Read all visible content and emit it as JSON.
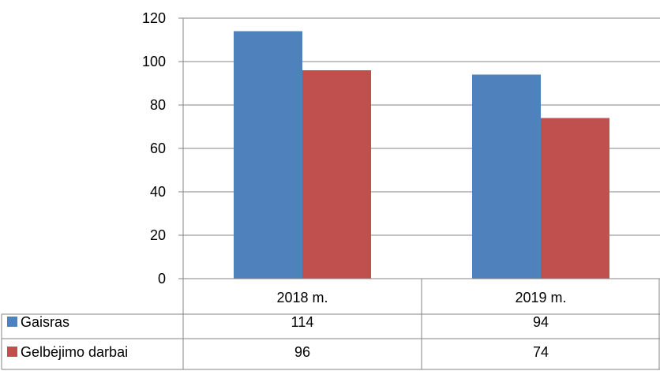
{
  "chart_data": {
    "type": "bar",
    "title": "",
    "xlabel": "",
    "ylabel": "",
    "categories": [
      "2018 m.",
      "2019 m."
    ],
    "series": [
      {
        "name": "Gaisras",
        "values": [
          114,
          94
        ],
        "color": "#4F81BD"
      },
      {
        "name": "Gelbėjimo darbai",
        "values": [
          96,
          74
        ],
        "color": "#C0504D"
      }
    ],
    "ylim": [
      0,
      120
    ],
    "yticks": [
      0,
      20,
      40,
      60,
      80,
      100,
      120
    ],
    "grid": true,
    "legend": "data-table-left",
    "data_table": {
      "rows": [
        {
          "label": "Gaisras",
          "values": [
            "114",
            "94"
          ]
        },
        {
          "label": "Gelbėjimo darbai",
          "values": [
            "96",
            "74"
          ]
        }
      ]
    }
  }
}
